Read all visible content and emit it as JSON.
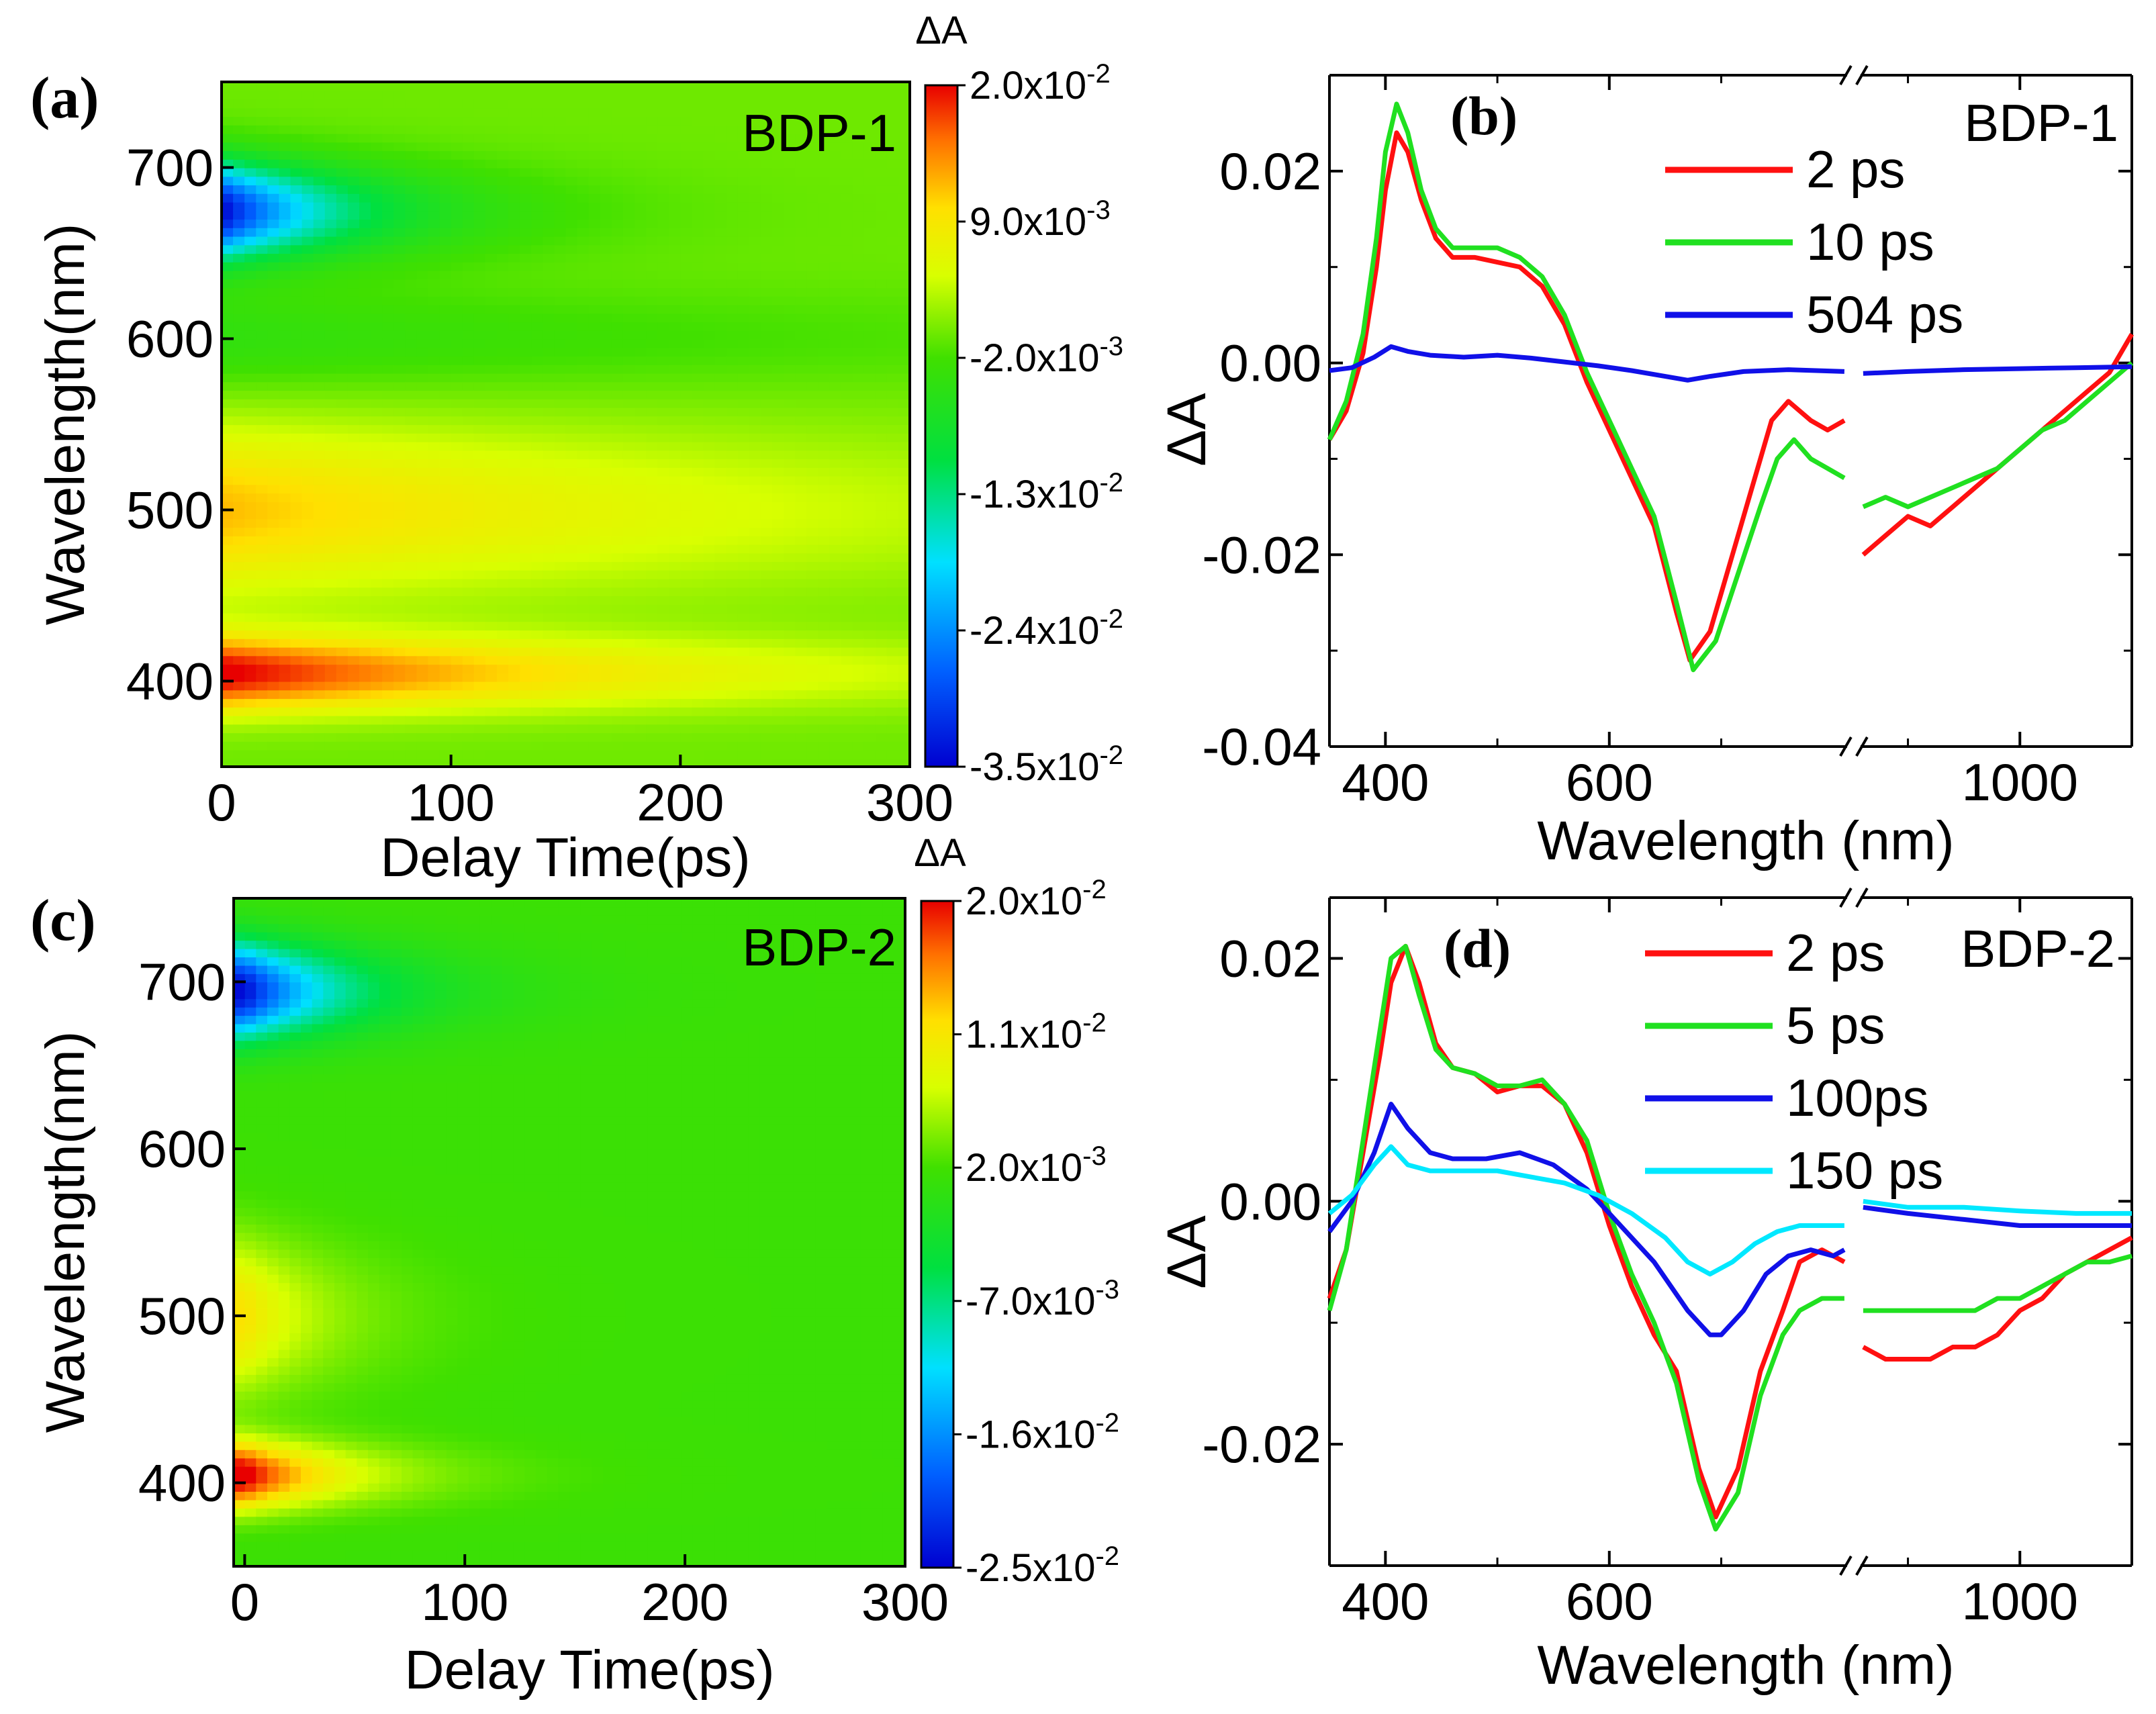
{
  "chart_data": [
    {
      "panel": "(a)",
      "type": "heatmap",
      "sample": "BDP-1",
      "xlabel": "Delay Time(ps)",
      "ylabel": "Wavelength(nm)",
      "xlim": [
        0,
        300
      ],
      "ylim": [
        350,
        750
      ],
      "xticks": [
        "0",
        "100",
        "200",
        "300"
      ],
      "yticks": [
        "400",
        "500",
        "600",
        "700"
      ],
      "colorbar": {
        "title": "ΔA",
        "range": [
          -0.035,
          0.02
        ],
        "ticks": [
          {
            "mant": "2.0x10",
            "exp": "-2"
          },
          {
            "mant": "9.0x10",
            "exp": "-3"
          },
          {
            "mant": "-2.0x10",
            "exp": "-3"
          },
          {
            "mant": "-1.3x10",
            "exp": "-2"
          },
          {
            "mant": "-2.4x10",
            "exp": "-2"
          },
          {
            "mant": "-3.5x10",
            "exp": "-2"
          }
        ]
      },
      "features": [
        {
          "wavelength": 405,
          "amplitude": 0.021,
          "tau": 180,
          "width": 22
        },
        {
          "wavelength": 500,
          "amplitude": 0.012,
          "tau": 250,
          "width": 48
        },
        {
          "wavelength": 675,
          "amplitude": -0.035,
          "tau": 55,
          "width": 28
        },
        {
          "wavelength": 600,
          "amplitude": -0.004,
          "tau": 300,
          "width": 30
        }
      ],
      "baseline": 0.0
    },
    {
      "panel": "(b)",
      "type": "line",
      "sample": "BDP-1",
      "xlabel": "Wavelength (nm)",
      "ylabel": "ΔA",
      "xlim": [
        350,
        1100
      ],
      "axis_break": [
        810,
        860
      ],
      "ylim": [
        -0.04,
        0.03
      ],
      "xticks": [
        "400",
        "600",
        "1000"
      ],
      "yticks": [
        "0.02",
        "0.00",
        "-0.02",
        "-0.04"
      ],
      "series": [
        {
          "name": "2 ps",
          "color": "#ff1010",
          "x": [
            350,
            365,
            380,
            392,
            400,
            410,
            420,
            432,
            445,
            460,
            480,
            500,
            520,
            540,
            560,
            580,
            600,
            620,
            640,
            660,
            672,
            690,
            710,
            730,
            745,
            760,
            780,
            795,
            810,
            860,
            880,
            900,
            920,
            940,
            960,
            980,
            1000,
            1020,
            1040,
            1060,
            1080,
            1100
          ],
          "y": [
            -0.008,
            -0.005,
            0.001,
            0.01,
            0.018,
            0.024,
            0.022,
            0.017,
            0.013,
            0.011,
            0.011,
            0.0105,
            0.01,
            0.008,
            0.004,
            -0.002,
            -0.007,
            -0.012,
            -0.017,
            -0.026,
            -0.031,
            -0.028,
            -0.02,
            -0.012,
            -0.006,
            -0.004,
            -0.006,
            -0.007,
            -0.006,
            -0.02,
            -0.018,
            -0.016,
            -0.017,
            -0.015,
            -0.013,
            -0.011,
            -0.009,
            -0.007,
            -0.005,
            -0.003,
            -0.001,
            0.003
          ]
        },
        {
          "name": "10 ps",
          "color": "#20e020",
          "x": [
            350,
            365,
            380,
            392,
            400,
            410,
            420,
            432,
            445,
            460,
            480,
            500,
            520,
            540,
            560,
            580,
            600,
            620,
            640,
            660,
            675,
            695,
            715,
            735,
            750,
            765,
            780,
            795,
            810,
            860,
            880,
            900,
            920,
            940,
            960,
            980,
            1000,
            1020,
            1040,
            1060,
            1080,
            1100
          ],
          "y": [
            -0.008,
            -0.004,
            0.003,
            0.013,
            0.022,
            0.027,
            0.024,
            0.018,
            0.014,
            0.012,
            0.012,
            0.012,
            0.011,
            0.009,
            0.005,
            -0.001,
            -0.006,
            -0.011,
            -0.016,
            -0.025,
            -0.032,
            -0.029,
            -0.022,
            -0.015,
            -0.01,
            -0.008,
            -0.01,
            -0.011,
            -0.012,
            -0.015,
            -0.014,
            -0.015,
            -0.014,
            -0.013,
            -0.012,
            -0.011,
            -0.009,
            -0.007,
            -0.006,
            -0.004,
            -0.002,
            0.0
          ]
        },
        {
          "name": "504 ps",
          "color": "#1010e8",
          "x": [
            350,
            370,
            390,
            405,
            420,
            440,
            470,
            500,
            530,
            560,
            590,
            620,
            650,
            670,
            690,
            720,
            760,
            810,
            860,
            900,
            950,
            1000,
            1050,
            1100
          ],
          "y": [
            -0.0008,
            -0.0005,
            0.0006,
            0.0017,
            0.0012,
            0.0008,
            0.0006,
            0.0008,
            0.0005,
            0.0001,
            -0.0003,
            -0.0008,
            -0.0014,
            -0.0018,
            -0.0014,
            -0.0009,
            -0.0007,
            -0.0009,
            -0.0011,
            -0.0009,
            -0.0007,
            -0.0006,
            -0.0005,
            -0.0004
          ]
        }
      ]
    },
    {
      "panel": "(c)",
      "type": "heatmap",
      "sample": "BDP-2",
      "xlabel": "Delay Time(ps)",
      "ylabel": "Wavelength(nm)",
      "xlim": [
        -5,
        300
      ],
      "ylim": [
        350,
        750
      ],
      "xticks": [
        "0",
        "100",
        "200",
        "300"
      ],
      "yticks": [
        "400",
        "500",
        "600",
        "700"
      ],
      "colorbar": {
        "title": "ΔA",
        "range": [
          -0.025,
          0.02
        ],
        "ticks": [
          {
            "mant": "2.0x10",
            "exp": "-2"
          },
          {
            "mant": "1.1x10",
            "exp": "-2"
          },
          {
            "mant": "2.0x10",
            "exp": "-3"
          },
          {
            "mant": "-7.0x10",
            "exp": "-3"
          },
          {
            "mant": "-1.6x10",
            "exp": "-2"
          },
          {
            "mant": "-2.5x10",
            "exp": "-2"
          }
        ]
      },
      "features": [
        {
          "wavelength": 405,
          "amplitude": 0.02,
          "tau": 45,
          "width": 20
        },
        {
          "wavelength": 500,
          "amplitude": 0.01,
          "tau": 40,
          "width": 45
        },
        {
          "wavelength": 695,
          "amplitude": -0.026,
          "tau": 45,
          "width": 28
        }
      ],
      "baseline": 0.0015
    },
    {
      "panel": "(d)",
      "type": "line",
      "sample": "BDP-2",
      "xlabel": "Wavelength (nm)",
      "ylabel": "ΔA",
      "xlim": [
        350,
        1100
      ],
      "axis_break": [
        810,
        860
      ],
      "ylim": [
        -0.03,
        0.025
      ],
      "xticks": [
        "400",
        "600",
        "1000"
      ],
      "yticks": [
        "0.02",
        "0.00",
        "-0.02"
      ],
      "series": [
        {
          "name": "2 ps",
          "color": "#ff1010",
          "x": [
            350,
            365,
            380,
            395,
            405,
            418,
            430,
            445,
            460,
            480,
            500,
            520,
            540,
            560,
            580,
            600,
            620,
            640,
            660,
            680,
            695,
            715,
            735,
            755,
            770,
            790,
            810,
            860,
            880,
            900,
            920,
            940,
            960,
            980,
            1000,
            1020,
            1040,
            1060,
            1080,
            1100
          ],
          "y": [
            -0.008,
            -0.004,
            0.004,
            0.012,
            0.018,
            0.021,
            0.018,
            0.013,
            0.011,
            0.0105,
            0.009,
            0.0095,
            0.0095,
            0.008,
            0.004,
            -0.002,
            -0.007,
            -0.011,
            -0.014,
            -0.022,
            -0.026,
            -0.022,
            -0.014,
            -0.009,
            -0.005,
            -0.004,
            -0.005,
            -0.012,
            -0.013,
            -0.013,
            -0.013,
            -0.012,
            -0.012,
            -0.011,
            -0.009,
            -0.008,
            -0.006,
            -0.005,
            -0.004,
            -0.003
          ]
        },
        {
          "name": "5 ps",
          "color": "#20e020",
          "x": [
            350,
            365,
            380,
            395,
            405,
            418,
            430,
            445,
            460,
            480,
            500,
            520,
            540,
            560,
            580,
            600,
            620,
            640,
            660,
            680,
            695,
            715,
            735,
            755,
            770,
            790,
            810,
            860,
            880,
            900,
            920,
            940,
            960,
            980,
            1000,
            1020,
            1040,
            1060,
            1080,
            1100
          ],
          "y": [
            -0.009,
            -0.004,
            0.005,
            0.014,
            0.02,
            0.021,
            0.017,
            0.0125,
            0.011,
            0.0105,
            0.0095,
            0.0095,
            0.01,
            0.008,
            0.005,
            -0.001,
            -0.006,
            -0.01,
            -0.015,
            -0.023,
            -0.027,
            -0.024,
            -0.016,
            -0.011,
            -0.009,
            -0.008,
            -0.008,
            -0.009,
            -0.009,
            -0.009,
            -0.009,
            -0.009,
            -0.009,
            -0.008,
            -0.008,
            -0.007,
            -0.006,
            -0.005,
            -0.005,
            -0.0045
          ]
        },
        {
          "name": "100ps",
          "color": "#1010e8",
          "x": [
            350,
            370,
            390,
            405,
            420,
            440,
            460,
            490,
            520,
            550,
            580,
            610,
            640,
            670,
            690,
            700,
            720,
            740,
            760,
            780,
            800,
            810,
            860,
            900,
            950,
            1000,
            1050,
            1100
          ],
          "y": [
            -0.0025,
            0.0,
            0.004,
            0.008,
            0.006,
            0.004,
            0.0035,
            0.0035,
            0.004,
            0.003,
            0.001,
            -0.002,
            -0.005,
            -0.009,
            -0.011,
            -0.011,
            -0.009,
            -0.006,
            -0.0045,
            -0.004,
            -0.0045,
            -0.004,
            -0.0005,
            -0.001,
            -0.0015,
            -0.002,
            -0.002,
            -0.002
          ]
        },
        {
          "name": "150 ps",
          "color": "#00e8ff",
          "x": [
            350,
            370,
            390,
            405,
            420,
            440,
            470,
            500,
            530,
            560,
            590,
            620,
            650,
            670,
            690,
            710,
            730,
            750,
            770,
            790,
            810,
            860,
            900,
            950,
            1000,
            1050,
            1100
          ],
          "y": [
            -0.001,
            0.0005,
            0.003,
            0.0045,
            0.003,
            0.0025,
            0.0025,
            0.0025,
            0.002,
            0.0015,
            0.0005,
            -0.001,
            -0.003,
            -0.005,
            -0.006,
            -0.005,
            -0.0035,
            -0.0025,
            -0.002,
            -0.002,
            -0.002,
            0.0,
            -0.0005,
            -0.0005,
            -0.0008,
            -0.001,
            -0.001
          ]
        }
      ]
    }
  ]
}
